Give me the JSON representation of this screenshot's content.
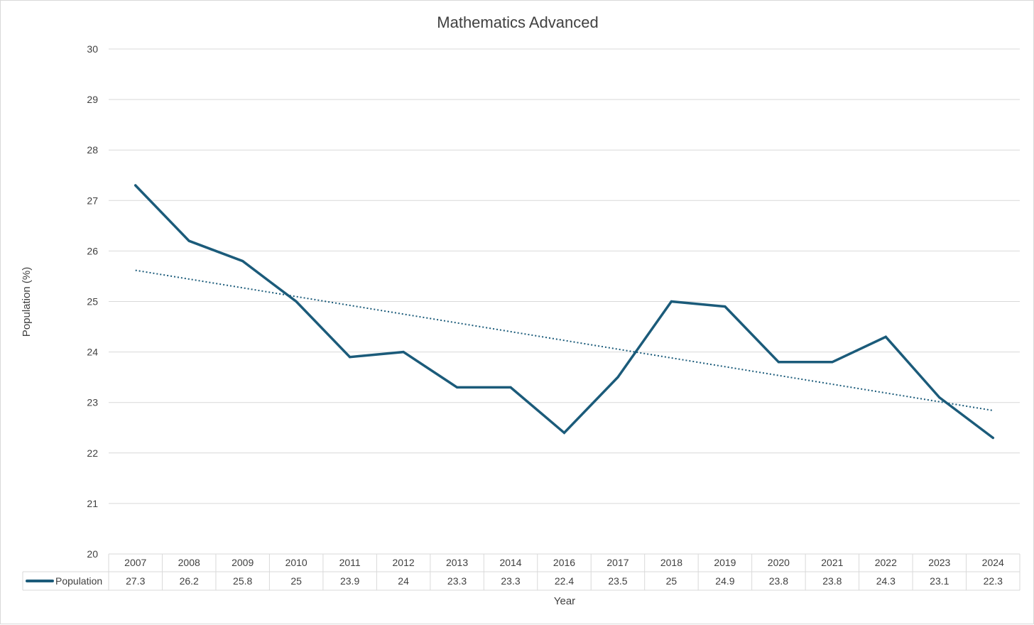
{
  "chart_data": {
    "type": "line",
    "title": "Mathematics Advanced",
    "xlabel": "Year",
    "ylabel": "Population (%)",
    "ylim": [
      20,
      30
    ],
    "yticks": [
      20,
      21,
      22,
      23,
      24,
      25,
      26,
      27,
      28,
      29,
      30
    ],
    "grid": true,
    "legend": "data-table-left",
    "categories": [
      "2007",
      "2008",
      "2009",
      "2010",
      "2011",
      "2012",
      "2013",
      "2014",
      "2016",
      "2017",
      "2018",
      "2019",
      "2020",
      "2021",
      "2022",
      "2023",
      "2024"
    ],
    "series": [
      {
        "name": "Population",
        "color": "#1b5b7a",
        "values": [
          27.3,
          26.2,
          25.8,
          25,
          23.9,
          24,
          23.3,
          23.3,
          22.4,
          23.5,
          25,
          24.9,
          23.8,
          23.8,
          24.3,
          23.1,
          22.3
        ],
        "value_labels": [
          "27.3",
          "26.2",
          "25.8",
          "25",
          "23.9",
          "24",
          "23.3",
          "23.3",
          "22.4",
          "23.5",
          "25",
          "24.9",
          "23.8",
          "23.8",
          "24.3",
          "23.1",
          "22.3"
        ]
      }
    ],
    "trendline": {
      "type": "linear",
      "style": "dotted",
      "color": "#1b5b7a"
    },
    "colors": {
      "series": "#1b5b7a",
      "grid": "#d9d9d9",
      "text": "#404040"
    }
  }
}
